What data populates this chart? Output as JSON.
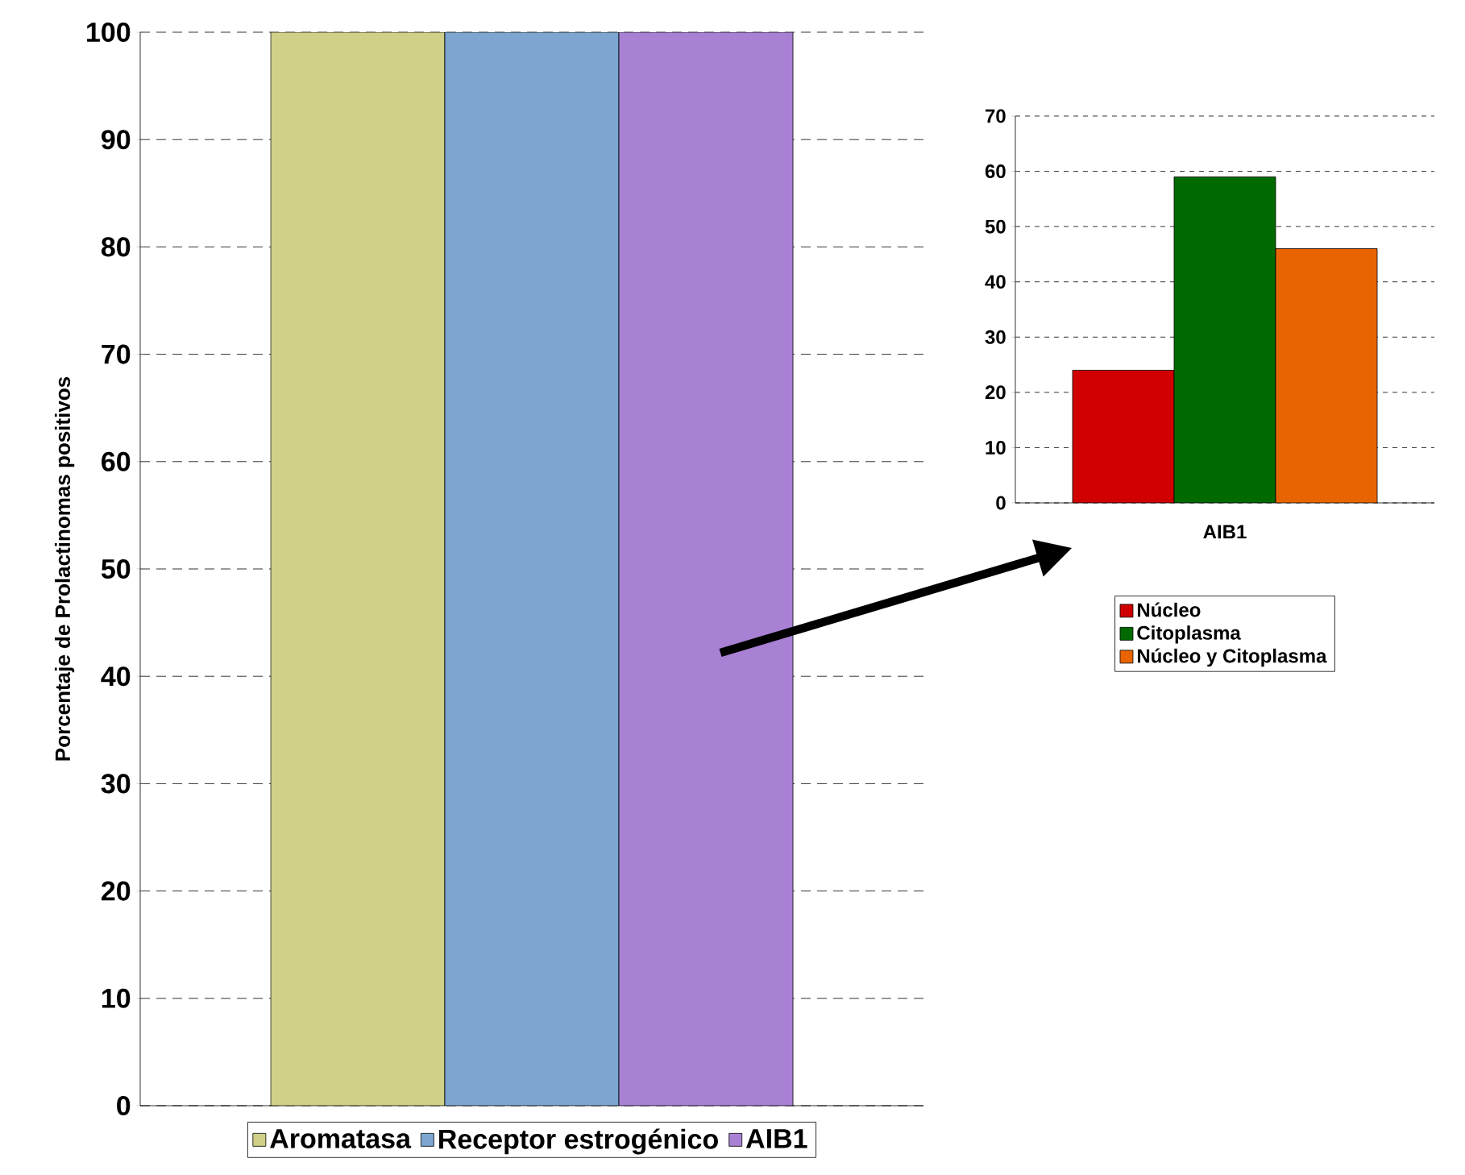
{
  "chart_data": [
    {
      "type": "bar",
      "ylabel": "Porcentaje de Prolactinomas positivos",
      "categories": [
        null
      ],
      "series": [
        {
          "name": "Aromatasa",
          "color": "#d0d088",
          "values": [
            100
          ]
        },
        {
          "name": "Receptor estrogénico",
          "color": "#7ca6d0",
          "values": [
            100
          ]
        },
        {
          "name": "AIB1",
          "color": "#a880d4",
          "values": [
            100
          ]
        }
      ],
      "ylim": [
        0,
        100
      ],
      "yticks": [
        0,
        10,
        20,
        30,
        40,
        50,
        60,
        70,
        80,
        90,
        100
      ],
      "grid": "y",
      "legend": "bottom"
    },
    {
      "type": "bar",
      "categories": [
        "AIB1"
      ],
      "series": [
        {
          "name": "Núcleo",
          "color": "#d00000",
          "values": [
            24
          ]
        },
        {
          "name": "Citoplasma",
          "color": "#006a00",
          "values": [
            59
          ]
        },
        {
          "name": "Núcleo y Citoplasma",
          "color": "#e86400",
          "values": [
            46
          ]
        }
      ],
      "ylim": [
        0,
        70
      ],
      "yticks": [
        0,
        10,
        20,
        30,
        40,
        50,
        60,
        70
      ],
      "grid": "y",
      "legend": "bottom"
    }
  ]
}
